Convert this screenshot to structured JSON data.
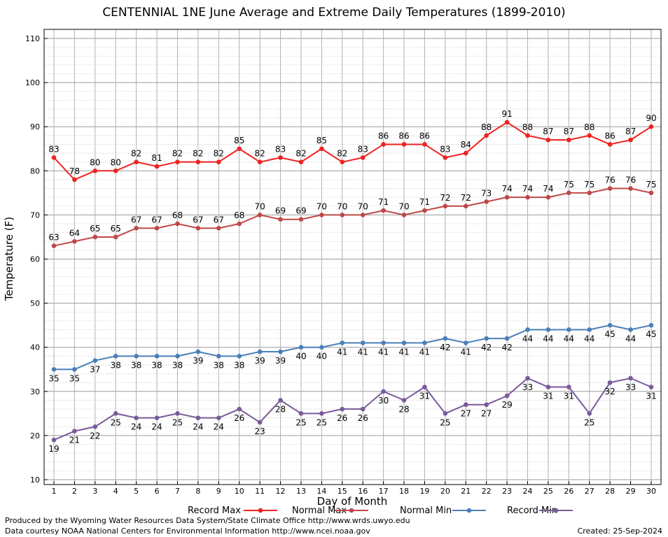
{
  "chart_data": {
    "type": "line",
    "title": "CENTENNIAL 1NE June Average and Extreme Daily Temperatures (1899-2010)",
    "xlabel": "Day of Month",
    "ylabel": "Temperature (F)",
    "ylim": [
      10,
      110
    ],
    "yticks": [
      10,
      20,
      30,
      40,
      50,
      60,
      70,
      80,
      90,
      100,
      110
    ],
    "x": [
      1,
      2,
      3,
      4,
      5,
      6,
      7,
      8,
      9,
      10,
      11,
      12,
      13,
      14,
      15,
      16,
      17,
      18,
      19,
      20,
      21,
      22,
      23,
      24,
      25,
      26,
      27,
      28,
      29,
      30
    ],
    "grid": true,
    "legend_position": "bottom",
    "series": [
      {
        "name": "Record Max",
        "color": "#ee2222",
        "label_pos": "above",
        "values": [
          83,
          78,
          80,
          80,
          82,
          81,
          82,
          82,
          82,
          85,
          82,
          83,
          82,
          85,
          82,
          83,
          86,
          86,
          86,
          83,
          84,
          88,
          91,
          88,
          87,
          87,
          88,
          86,
          87,
          90
        ]
      },
      {
        "name": "Normal Max",
        "color": "#c04848",
        "label_pos": "above",
        "values": [
          63,
          64,
          65,
          65,
          67,
          67,
          68,
          67,
          67,
          68,
          70,
          69,
          69,
          70,
          70,
          70,
          71,
          70,
          71,
          72,
          72,
          73,
          74,
          74,
          74,
          75,
          75,
          76,
          76,
          75
        ]
      },
      {
        "name": "Normal Min",
        "color": "#4a7fb8",
        "label_pos": "below",
        "values": [
          35,
          35,
          37,
          38,
          38,
          38,
          38,
          39,
          38,
          38,
          39,
          39,
          40,
          40,
          41,
          41,
          41,
          41,
          41,
          42,
          41,
          42,
          42,
          44,
          44,
          44,
          44,
          45,
          44,
          45
        ]
      },
      {
        "name": "Record Min",
        "color": "#7a5a9a",
        "label_pos": "below",
        "values": [
          19,
          21,
          22,
          25,
          24,
          24,
          25,
          24,
          24,
          26,
          23,
          28,
          25,
          25,
          26,
          26,
          30,
          28,
          31,
          25,
          27,
          27,
          29,
          33,
          31,
          31,
          25,
          32,
          33,
          31
        ]
      }
    ]
  },
  "footer": {
    "produced": "Produced by the Wyoming Water Resources Data System/State Climate Office http://www.wrds.uwyo.edu",
    "courtesy": "Data courtesy NOAA National Centers for Environmental Information http://www.ncei.noaa.gov",
    "created": "Created:  25-Sep-2024"
  }
}
